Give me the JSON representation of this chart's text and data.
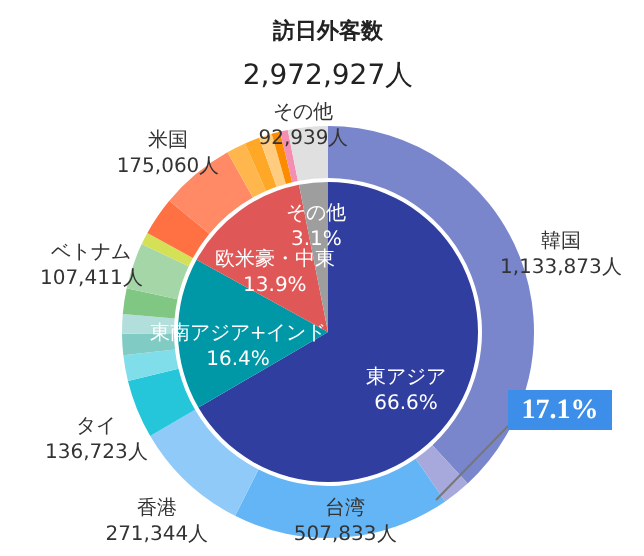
{
  "chart_data": [
    {
      "type": "donut",
      "title": "訪日外客数",
      "subtitle": "2,972,927人",
      "categories": [
        "韓国",
        null,
        "台湾",
        "香港",
        "タイ",
        null,
        null,
        null,
        null,
        "ベトナム",
        null,
        null,
        "米国",
        null,
        null,
        null,
        null,
        null,
        "その他"
      ],
      "values": [
        1133873,
        66141,
        507833,
        271344,
        136723,
        60000,
        50000,
        45000,
        60000,
        107411,
        28426,
        90000,
        175060,
        45000,
        35000,
        30000,
        20000,
        18177,
        92939
      ],
      "value_labels": [
        "1,133,873人",
        null,
        "507,833人",
        "271,344人",
        "136,723人",
        null,
        null,
        null,
        null,
        "107,411人",
        null,
        null,
        "175,060人",
        null,
        null,
        null,
        null,
        null,
        "92,939人"
      ],
      "colors": [
        "#7986cb",
        "#a7a9dc",
        "#64b5f6",
        "#90caf9",
        "#26c6da",
        "#80deea",
        "#80cbc4",
        "#b2dfdb",
        "#81c784",
        "#a5d6a7",
        "#d4e157",
        "#ff7043",
        "#ff8a65",
        "#ffb74d",
        "#ffa726",
        "#ffcc80",
        "#fb8c00",
        "#f48fb1",
        "#e0e0e0"
      ],
      "annotations": [
        "17.1%"
      ]
    },
    {
      "type": "pie",
      "categories": [
        "東アジア",
        "東南アジア+インド",
        "欧米豪・中東",
        "その他"
      ],
      "values": [
        66.6,
        16.4,
        13.9,
        3.1
      ],
      "value_labels": [
        "66.6%",
        "16.4%",
        "13.9%",
        "3.1%"
      ],
      "colors": [
        "#303f9f",
        "#0097a7",
        "#e05757",
        "#9e9e9e"
      ]
    }
  ]
}
